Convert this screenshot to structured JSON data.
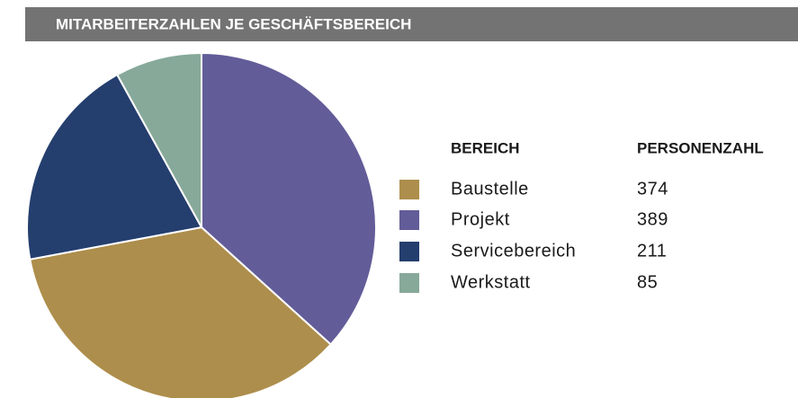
{
  "chart_data": {
    "type": "pie",
    "title": "MITARBEITERZAHLEN JE GESCHÄFTSBEREICH",
    "column_headers": [
      "BEREICH",
      "PERSONENZAHL"
    ],
    "categories": [
      "Baustelle",
      "Projekt",
      "Servicebereich",
      "Werkstatt"
    ],
    "values": [
      374,
      389,
      211,
      85
    ],
    "colors": [
      "#ad8e4c",
      "#625c98",
      "#243e6e",
      "#87a99a"
    ]
  }
}
